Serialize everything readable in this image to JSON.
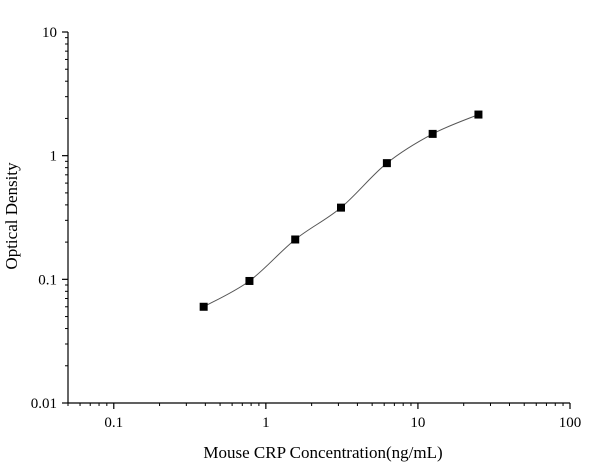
{
  "chart_data": {
    "type": "scatter",
    "x_scale": "log",
    "y_scale": "log",
    "xlim": [
      0.05,
      100
    ],
    "ylim": [
      0.01,
      10
    ],
    "xlabel": "Mouse CRP Concentration(ng/mL)",
    "ylabel": "Optical Density",
    "x_ticks": [
      {
        "value": 0.1,
        "label": "0.1"
      },
      {
        "value": 1,
        "label": "1"
      },
      {
        "value": 10,
        "label": "10"
      },
      {
        "value": 100,
        "label": "100"
      }
    ],
    "y_ticks": [
      {
        "value": 0.01,
        "label": "0.01"
      },
      {
        "value": 0.1,
        "label": "0.1"
      },
      {
        "value": 1,
        "label": "1"
      },
      {
        "value": 10,
        "label": "10"
      }
    ],
    "series": [
      {
        "x": [
          0.39,
          0.78,
          1.56,
          3.12,
          6.25,
          12.5,
          25
        ],
        "y": [
          0.06,
          0.097,
          0.21,
          0.38,
          0.87,
          1.5,
          2.15
        ],
        "marker": "square",
        "fit_line": true
      }
    ],
    "grid": false,
    "colors": {
      "marker": "#000000",
      "line": "#555555",
      "axis": "#000000"
    }
  }
}
